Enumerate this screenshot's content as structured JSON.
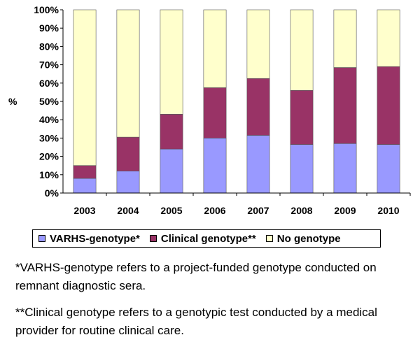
{
  "chart_data": {
    "type": "bar",
    "stacked": true,
    "title": "",
    "xlabel": "",
    "ylabel": "%",
    "ylim": [
      0,
      100
    ],
    "yticks": [
      "0%",
      "10%",
      "20%",
      "30%",
      "40%",
      "50%",
      "60%",
      "70%",
      "80%",
      "90%",
      "100%"
    ],
    "categories": [
      "2003",
      "2004",
      "2005",
      "2006",
      "2007",
      "2008",
      "2009",
      "2010"
    ],
    "series": [
      {
        "name": "VARHS-genotype*",
        "color": "#9999ff",
        "values": [
          8,
          12,
          24,
          30,
          31.5,
          26.5,
          27,
          26.5
        ]
      },
      {
        "name": "Clinical genotype**",
        "color": "#993366",
        "values": [
          7,
          18.5,
          19,
          27.5,
          31,
          29.5,
          41.5,
          42.5
        ]
      },
      {
        "name": "No genotype",
        "color": "#ffffcc",
        "values": [
          85,
          69.5,
          57,
          42.5,
          37.5,
          44,
          31.5,
          31
        ]
      }
    ],
    "grid": false,
    "legend_position": "bottom"
  },
  "notes": {
    "varhs": "*VARHS-genotype refers to a project-funded genotype conducted on remnant diagnostic sera.",
    "clinical": "**Clinical genotype refers to a genotypic test conducted by a medical provider for routine clinical care."
  }
}
